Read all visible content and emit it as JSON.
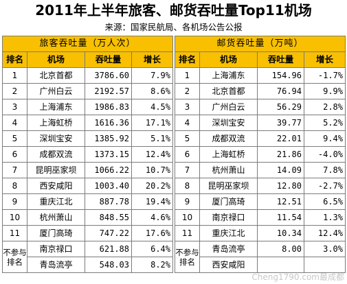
{
  "title": "2011年上半年旅客、邮货吞吐量Top11机场",
  "source": "来源：国家民航局、各机场公告公报",
  "passenger": {
    "heading": "旅客吞吐量（万人次）",
    "columns": [
      "排名",
      "机场",
      "吞吐量",
      "增长"
    ],
    "rows": [
      {
        "rank": "1",
        "airport": "北京首都",
        "volume": "3786.60",
        "growth": "7.9%"
      },
      {
        "rank": "2",
        "airport": "广州白云",
        "volume": "2192.57",
        "growth": "8.6%"
      },
      {
        "rank": "3",
        "airport": "上海浦东",
        "volume": "1986.83",
        "growth": "4.5%"
      },
      {
        "rank": "4",
        "airport": "上海虹桥",
        "volume": "1616.36",
        "growth": "17.1%"
      },
      {
        "rank": "5",
        "airport": "深圳宝安",
        "volume": "1385.92",
        "growth": "5.1%"
      },
      {
        "rank": "6",
        "airport": "成都双流",
        "volume": "1373.15",
        "growth": "12.4%"
      },
      {
        "rank": "7",
        "airport": "昆明巫家坝",
        "volume": "1066.22",
        "growth": "10.7%"
      },
      {
        "rank": "8",
        "airport": "西安咸阳",
        "volume": "1003.40",
        "growth": "20.2%"
      },
      {
        "rank": "9",
        "airport": "重庆江北",
        "volume": "887.78",
        "growth": "19.4%"
      },
      {
        "rank": "10",
        "airport": "杭州萧山",
        "volume": "848.55",
        "growth": "4.6%"
      },
      {
        "rank": "11",
        "airport": "厦门高琦",
        "volume": "747.22",
        "growth": "17.6%"
      }
    ],
    "unranked_label": "不参与排名",
    "unranked": [
      {
        "airport": "南京禄口",
        "volume": "621.88",
        "growth": "6.4%"
      },
      {
        "airport": "青岛流亭",
        "volume": "548.03",
        "growth": "8.2%"
      }
    ]
  },
  "cargo": {
    "heading": "邮货吞吐量（万吨）",
    "columns": [
      "排名",
      "机场",
      "吞吐量",
      "增长"
    ],
    "rows": [
      {
        "rank": "1",
        "airport": "上海浦东",
        "volume": "154.96",
        "growth": "-1.7%"
      },
      {
        "rank": "2",
        "airport": "北京首都",
        "volume": "76.94",
        "growth": "9.9%"
      },
      {
        "rank": "3",
        "airport": "广州白云",
        "volume": "56.29",
        "growth": "2.8%"
      },
      {
        "rank": "4",
        "airport": "深圳宝安",
        "volume": "39.77",
        "growth": "5.2%"
      },
      {
        "rank": "5",
        "airport": "成都双流",
        "volume": "22.01",
        "growth": "9.4%"
      },
      {
        "rank": "6",
        "airport": "上海虹桥",
        "volume": "21.86",
        "growth": "-4.0%"
      },
      {
        "rank": "7",
        "airport": "杭州萧山",
        "volume": "14.09",
        "growth": "7.8%"
      },
      {
        "rank": "8",
        "airport": "昆明巫家坝",
        "volume": "12.80",
        "growth": "-2.7%"
      },
      {
        "rank": "9",
        "airport": "厦门高琦",
        "volume": "12.51",
        "growth": "6.5%"
      },
      {
        "rank": "10",
        "airport": "南京禄口",
        "volume": "11.54",
        "growth": "1.3%"
      },
      {
        "rank": "11",
        "airport": "重庆江北",
        "volume": "10.34",
        "growth": "12.4%"
      }
    ],
    "unranked_label": "不参与排名",
    "unranked": [
      {
        "airport": "青岛流亭",
        "volume": "8.00",
        "growth": "3.0%"
      },
      {
        "airport": "西安咸阳",
        "volume": "",
        "growth": ""
      }
    ]
  },
  "watermark": "Cheng1790.com最成都"
}
